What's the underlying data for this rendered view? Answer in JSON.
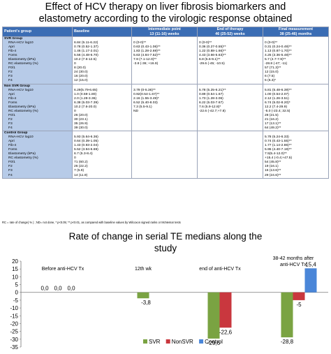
{
  "table": {
    "title_lines": [
      "Effect of HCV therapy on liver fibrosis biomarkers and",
      "elastometry according to the virologic response obtained"
    ],
    "header": [
      "Patient's group",
      "Baseline",
      "Intermediate point\n13 (11-16) weeks",
      "End of therapy\n46 (25-52) weeks",
      "Final measurement\n38 (25-46) months"
    ],
    "groups": [
      {
        "name": "SVR Group",
        "rows": [
          "RNA-HCV log10",
          "Apri",
          "Fib-4",
          "Forns",
          "Elastometry (kPa)",
          "RC elastometry (%)",
          "F0/1",
          "F2",
          "F3",
          "F4"
        ],
        "baseline": [
          "6.84 (5.11-6.22)",
          "0.78 (0.52-1.37)",
          "1.46 (1.17-2.01)",
          "5.56 (4.48-6.70)",
          "10.2 (7.6-12.5)",
          "0",
          "8 (20.0)",
          "24 (30.0)",
          "16 (20.0)",
          "12 (15.0)"
        ],
        "intermediate": [
          "0 (0-0)**",
          "0.63 (0.43-1.06)**",
          "1.83 (1.28-2.69)**",
          "5.63 (4.84-7.52)**",
          "7.9 (7.1-12.0)**",
          "-3.8 (-36; +16.9)",
          "",
          "",
          "",
          ""
        ],
        "end": [
          "0 (0-0)**",
          "0.36 (0.27-0.55)**",
          "1.22 (0.88-1.66)**",
          "4.43 (3.66-5.63)**",
          "6.8 (5.6-9.1)**",
          "-29.6 (-45; -10.5)",
          "",
          "",
          "",
          ""
        ],
        "final": [
          "0 (0-0)**",
          "0.31 (0.24-0.49)**",
          "1.13 (0.87-1.70)**",
          "4.25 (3.36-5.48)**",
          "5.7 (4.7-7.9)**",
          "-28.8 (-47; -11)",
          "57 (71.3)**",
          "12 (15.0)",
          "6 (7.5)",
          "5 (6.3)*"
        ]
      },
      {
        "name": "Non SVR Group",
        "rows": [
          "RNA-HCV log10",
          "Apri",
          "Fib-4",
          "Forns",
          "Elastometry (kPa)",
          "RC elastometry (%)",
          "F0/1",
          "F2",
          "F3",
          "F4"
        ],
        "baseline": [
          "6.29(5.79-6.65)",
          "1.0 (0.59-1.80)",
          "2.0 (1.28-3.36)",
          "6.38 (5.03-7.39)",
          "10.2 (7.6-20.0)",
          "0",
          "26 (20.0)",
          "30 (23.1)",
          "35 (26.9)",
          "39 (30.0)"
        ],
        "intermediate": [
          "3.79 (0-5.36)**",
          "0.92(0.54-1.67)**",
          "2.16 (1.55-3.49)*",
          "6.52 (5.40-8.03)",
          "7.3 (5.5-9.1)",
          "ND",
          "",
          "",
          "",
          ""
        ],
        "end": [
          "5.78 (5.25-6.21)**",
          "0.89 (0.54-1.67)",
          "1.73 (1.28-3.06)",
          "6.22 (5.03-7.67)",
          "7.6 (5.9-12.8)*",
          "-22.6 (-42.7;+7.8)",
          "",
          "",
          "",
          ""
        ],
        "final": [
          "5.81 (5.48-6.39)**",
          "1.00 (0.54-2.07)",
          "2.12 (1.26-3.51)",
          "6.74 (5.02-8.20)*",
          "12.2 (7.4-29.9)",
          "-5.0 (-23.4; 32.5)",
          "28 (21.5)",
          "21 (16.2)",
          "17 (13.1)**",
          "64 (49.2)**"
        ]
      },
      {
        "name": "Control Group",
        "rows": [
          "RNA-HCV log10",
          "Apri",
          "Fib-4",
          "Forns",
          "Elastometry (kPa)",
          "RC elastometry (%)",
          "F0/1",
          "F2",
          "F3",
          "F4"
        ],
        "baseline": [
          "5.93 (5.64-6.36)",
          "0.64 (0.39-1.05)",
          "1.43 (0.93-2.04)",
          "5.52 (3.94-6.69)",
          "6.7 (5.3-8.4)",
          "0",
          "71 (60.2)",
          "26 (22.2)",
          "7 (5.9)",
          "14 (11.9)"
        ],
        "intermediate": [
          "",
          "",
          "",
          "",
          "",
          "",
          "",
          "",
          "",
          ""
        ],
        "end": [
          "",
          "",
          "",
          "",
          "",
          "",
          "",
          "",
          "",
          ""
        ],
        "final": [
          "5.78 (5.24-6.33)",
          "0.74 (0.43-1.55)**",
          "1.77 (1.14-2.86)**",
          "5.95 (4.40-7.19)**",
          "7.5(5.4-12.0)**",
          "+15.4 (-0.4;+47.5)",
          "54 (45.8)**",
          "19 (16.1)",
          "16 (13.6)**",
          "29 (24.6)**"
        ]
      }
    ],
    "footnote": "RC = rate of change( % ) ; ND= not done, * p<0.05; ** p<0.01, as compared with baseline values by Wilcoxon signed ranks or McNemar tests"
  },
  "chart_data": {
    "type": "bar",
    "title": "Rate of change in serial TE medians along the study",
    "title_lines": [
      "Rate of change in serial TE medians along the",
      "study"
    ],
    "categories": [
      "Before anti-HCV Tx",
      "12th wk",
      "end of anti-HCV Tx",
      "38-42 months after anti-HCV Tx"
    ],
    "category_lines": [
      [
        "Before anti-HCV Tx"
      ],
      [
        "12th wk"
      ],
      [
        "end of anti-HCV Tx"
      ],
      [
        "38-42 months after",
        "anti-HCV Tx"
      ]
    ],
    "series": [
      {
        "name": "SVR",
        "color": "#7aa342",
        "values": [
          0.0,
          -3.8,
          -29.6,
          -28.8
        ]
      },
      {
        "name": "NonSVR",
        "color": "#c9373e",
        "values": [
          0.0,
          null,
          -22.6,
          -5
        ]
      },
      {
        "name": "Control",
        "color": "#4a86d8",
        "values": [
          0.0,
          null,
          null,
          15.4
        ]
      }
    ],
    "data_labels": [
      [
        "0,0",
        "-3,8",
        "-29,6",
        "-28,8"
      ],
      [
        "0,0",
        null,
        "-22,6",
        "-5"
      ],
      [
        "0,0",
        null,
        null,
        "15,4"
      ]
    ],
    "yticks": [
      20,
      15,
      10,
      5,
      0,
      -5,
      -10,
      -15,
      -20,
      -25,
      -30,
      -35
    ],
    "ylim": [
      -35,
      20
    ],
    "legend_position": "bottom",
    "grid": false
  }
}
